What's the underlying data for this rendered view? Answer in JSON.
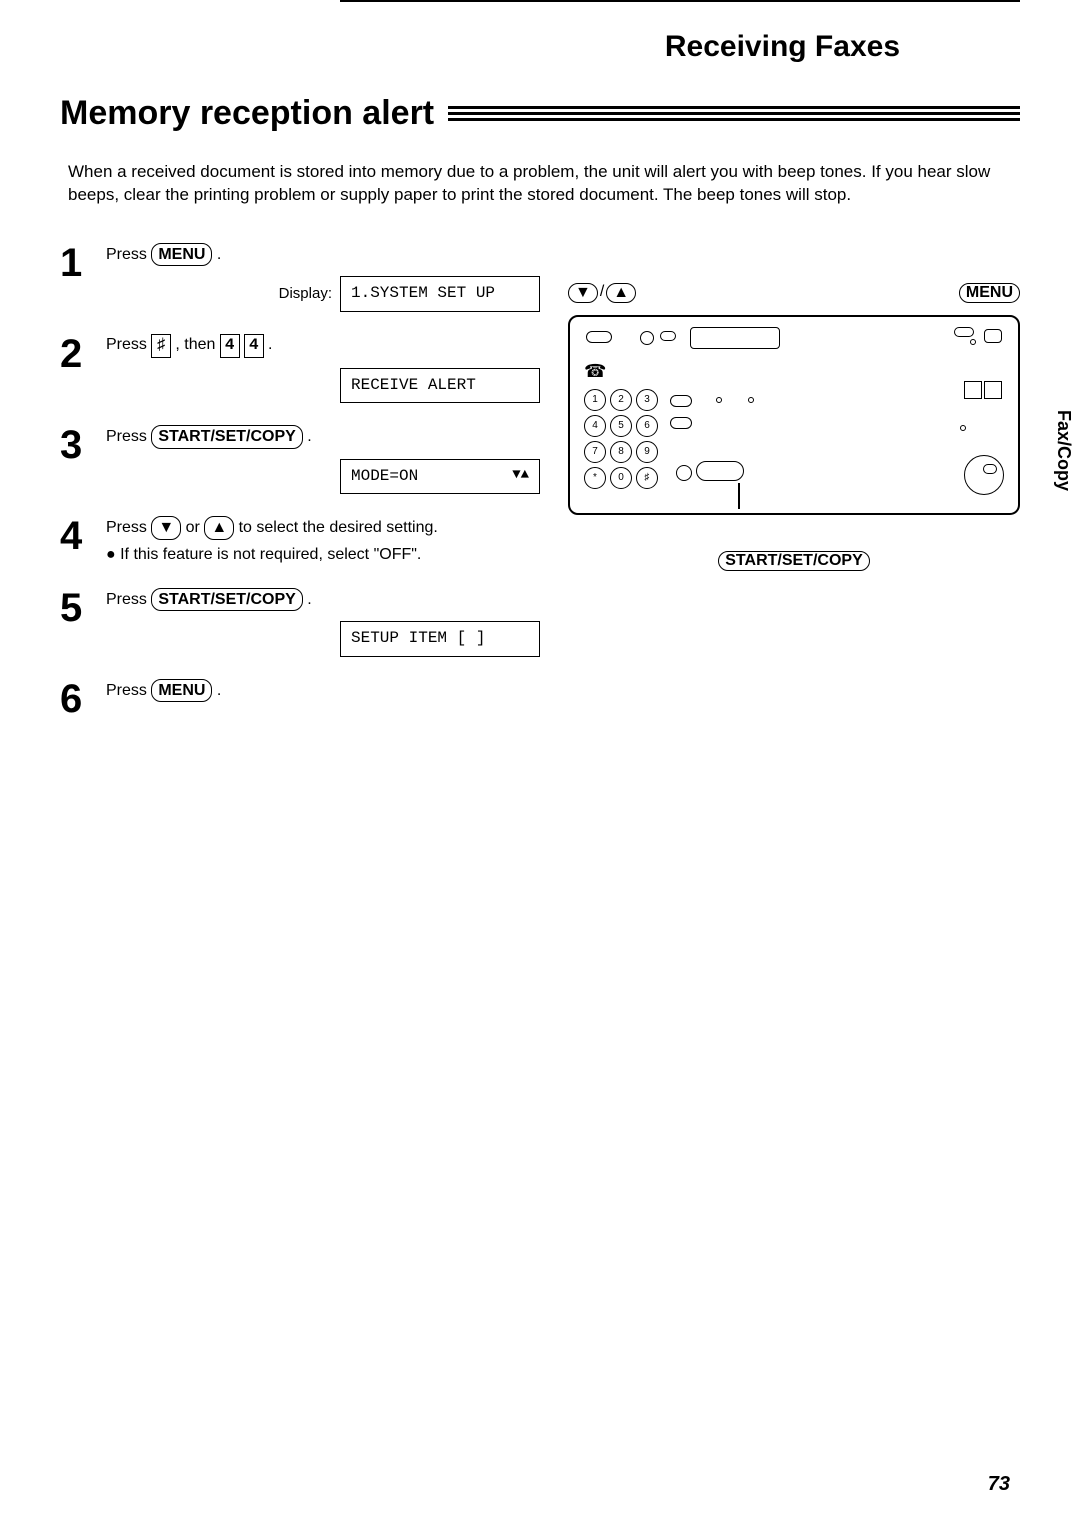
{
  "chapter_title": "Receiving Faxes",
  "section_title": "Memory reception alert",
  "intro": "When a received document is stored into memory due to a problem, the unit will alert you with beep tones. If you hear slow beeps, clear the printing problem or supply paper to print the stored document. The beep tones will stop.",
  "display_label": "Display:",
  "steps": [
    {
      "num": "1",
      "prefix": "Press ",
      "button": "MENU",
      "suffix": " .",
      "display": "1.SYSTEM SET UP"
    },
    {
      "num": "2",
      "prefix": "Press ",
      "key1": "♯",
      "mid": ", then ",
      "key2": "4",
      "key3": "4",
      "suffix": " .",
      "display": "RECEIVE ALERT"
    },
    {
      "num": "3",
      "prefix": "Press ",
      "button": "START/SET/COPY",
      "suffix": " .",
      "display": "MODE=ON",
      "display_arrows": "▼▲"
    },
    {
      "num": "4",
      "prefix": "Press ",
      "arrow1": "▼",
      "mid": " or ",
      "arrow2": "▲",
      "suffix": " to select the desired setting.",
      "bullet": "● If this feature is not required, select \"OFF\"."
    },
    {
      "num": "5",
      "prefix": "Press ",
      "button": "START/SET/COPY",
      "suffix": " .",
      "display": "SETUP ITEM [   ]"
    },
    {
      "num": "6",
      "prefix": "Press ",
      "button": "MENU",
      "suffix": " ."
    }
  ],
  "diagram": {
    "arrow_down": "▼",
    "arrow_up": "▲",
    "menu_label": "MENU",
    "bottom_label": "START/SET/COPY",
    "keypad": [
      "1",
      "2",
      "3",
      "4",
      "5",
      "6",
      "7",
      "8",
      "9",
      "*",
      "0",
      "♯"
    ]
  },
  "sidetab": "Fax/Copy",
  "page_number": "73"
}
